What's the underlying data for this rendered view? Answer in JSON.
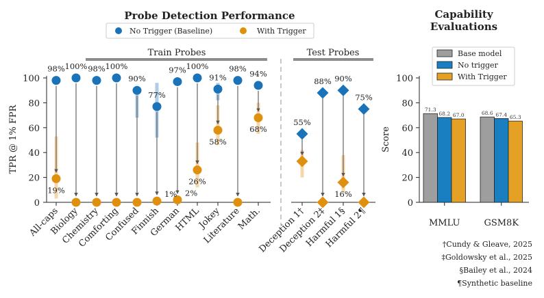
{
  "chart_data": [
    {
      "type": "scatter",
      "title": "Probe Detection Performance",
      "ylabel": "TPR @ 1% FPR",
      "ylim": [
        0,
        100
      ],
      "yticks": [
        "0",
        "20",
        "40",
        "60",
        "80",
        "100"
      ],
      "legend": [
        {
          "label": "No Trigger (Baseline)",
          "color": "#1a73b8"
        },
        {
          "label": "With Trigger",
          "color": "#e0900f"
        }
      ],
      "groups": [
        {
          "label": "Train Probes"
        },
        {
          "label": "Test Probes"
        }
      ],
      "categories": [
        "All-caps",
        "Biology",
        "Chemistry",
        "Comforting",
        "Confused",
        "Finnish",
        "German",
        "HTML",
        "Jokey",
        "Literature",
        "Math.",
        "Deception 1†",
        "Deception 2‡",
        "Harmful 1§",
        "Harmful 2¶"
      ],
      "series": [
        {
          "name": "No Trigger (Baseline)",
          "values": [
            98,
            100,
            98,
            100,
            90,
            77,
            97,
            100,
            91,
            98,
            94,
            55,
            88,
            90,
            75
          ],
          "labels": [
            "98%",
            "100%",
            "98%",
            "100%",
            "90%",
            "77%",
            "97%",
            "100%",
            "91%",
            "98%",
            "94%",
            "55%",
            "88%",
            "90%",
            "75%"
          ],
          "error_low": [
            null,
            null,
            null,
            null,
            68,
            52,
            null,
            null,
            82,
            null,
            null,
            null,
            null,
            null,
            null
          ],
          "error_high": [
            null,
            null,
            null,
            null,
            93,
            96,
            null,
            null,
            96,
            null,
            null,
            null,
            null,
            null,
            null
          ]
        },
        {
          "name": "With Trigger",
          "values": [
            19,
            0,
            0,
            0,
            0,
            1,
            2,
            26,
            58,
            0,
            68,
            33,
            0,
            16,
            0
          ],
          "labels": [
            "19%",
            "",
            "",
            "",
            "",
            "1%",
            "2%",
            "26%",
            "58%",
            "",
            "68%",
            "",
            "",
            "16%",
            ""
          ],
          "error_low": [
            3,
            null,
            null,
            null,
            null,
            null,
            null,
            12,
            46,
            null,
            55,
            20,
            null,
            8,
            null
          ],
          "error_high": [
            53,
            null,
            null,
            null,
            null,
            null,
            null,
            48,
            78,
            null,
            80,
            42,
            null,
            38,
            null
          ]
        }
      ]
    },
    {
      "type": "bar",
      "title": "Capability Evaluations",
      "ylabel": "Score",
      "ylim": [
        0,
        100
      ],
      "yticks": [
        "0",
        "20",
        "40",
        "60",
        "80",
        "100"
      ],
      "categories": [
        "MMLU",
        "GSM8K"
      ],
      "series": [
        {
          "name": "Base model",
          "color": "#9e9e9e",
          "values": [
            71.3,
            68.6
          ],
          "labels": [
            "71.3",
            "68.6"
          ]
        },
        {
          "name": "No trigger",
          "color": "#1a7fc1",
          "values": [
            68.2,
            67.4
          ],
          "labels": [
            "68.2",
            "67.4"
          ]
        },
        {
          "name": "With Trigger",
          "color": "#e4a126",
          "values": [
            67.0,
            65.3
          ],
          "labels": [
            "67.0",
            "65.3"
          ]
        }
      ]
    }
  ],
  "footnotes": [
    "†Cundy & Gleave, 2025",
    "‡Goldowsky et al., 2025",
    "§Bailey et al., 2024",
    "¶Synthetic baseline"
  ]
}
